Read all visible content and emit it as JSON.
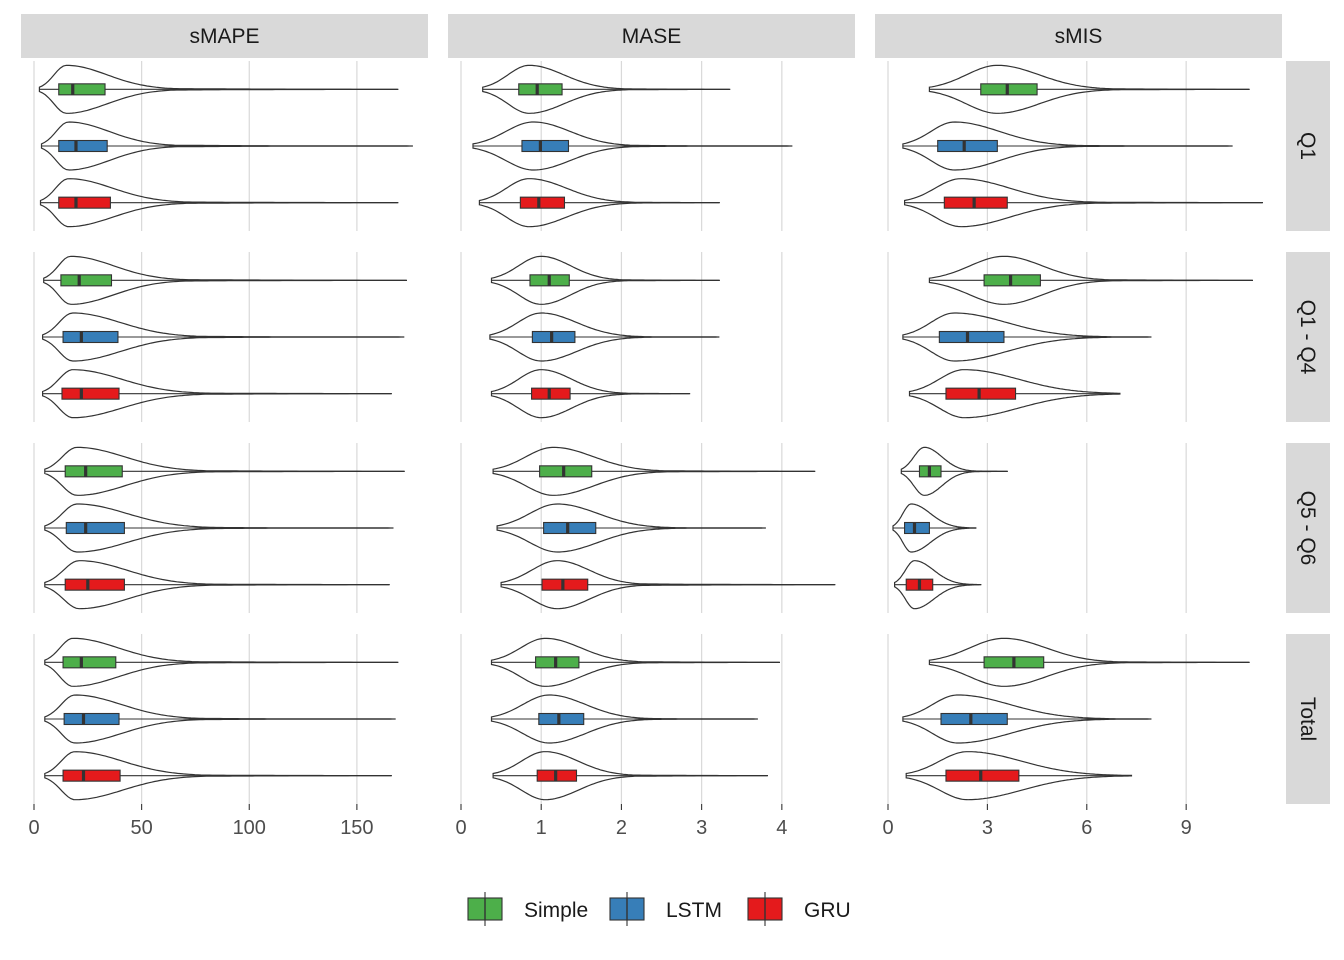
{
  "chart_data": {
    "type": "violin",
    "series": [
      {
        "name": "Simple",
        "color": "#4DAF4A"
      },
      {
        "name": "LSTM",
        "color": "#377EB8"
      },
      {
        "name": "GRU",
        "color": "#E41A1C"
      }
    ],
    "columns": [
      {
        "label": "sMAPE",
        "xlim": [
          0,
          177
        ],
        "ticks": [
          0,
          50,
          100,
          150
        ],
        "tick_labels": [
          "0",
          "50",
          "100",
          "150"
        ]
      },
      {
        "label": "MASE",
        "xlim": [
          0,
          4.75
        ],
        "ticks": [
          0,
          1,
          2,
          3,
          4
        ],
        "tick_labels": [
          "0",
          "1",
          "2",
          "3",
          "4"
        ]
      },
      {
        "label": "sMIS",
        "xlim": [
          0,
          11.5
        ],
        "ticks": [
          0,
          3,
          6,
          9
        ],
        "tick_labels": [
          "0",
          "3",
          "6",
          "9"
        ]
      }
    ],
    "rows": [
      "Q1",
      "Q1 - Q4",
      "Q5 - Q6",
      "Total"
    ],
    "panels": [
      [
        [
          {
            "series": "Simple",
            "min": 2.5,
            "max": 169,
            "q1": 11.5,
            "median": 18,
            "q3": 33,
            "mode": 15
          },
          {
            "series": "LSTM",
            "min": 3.5,
            "max": 176,
            "q1": 11.5,
            "median": 19.5,
            "q3": 34,
            "mode": 16
          },
          {
            "series": "GRU",
            "min": 3,
            "max": 169,
            "q1": 11.5,
            "median": 19.5,
            "q3": 35.5,
            "mode": 16
          }
        ],
        [
          {
            "series": "Simple",
            "min": 4.5,
            "max": 173,
            "q1": 12.5,
            "median": 21,
            "q3": 36,
            "mode": 17
          },
          {
            "series": "LSTM",
            "min": 4,
            "max": 172,
            "q1": 13.5,
            "median": 22,
            "q3": 39,
            "mode": 18
          },
          {
            "series": "GRU",
            "min": 4,
            "max": 166,
            "q1": 13,
            "median": 22,
            "q3": 39.5,
            "mode": 18
          }
        ],
        [
          {
            "series": "Simple",
            "min": 5,
            "max": 172,
            "q1": 14.5,
            "median": 24,
            "q3": 41,
            "mode": 20
          },
          {
            "series": "LSTM",
            "min": 5,
            "max": 167,
            "q1": 15,
            "median": 24,
            "q3": 42,
            "mode": 20
          },
          {
            "series": "GRU",
            "min": 5,
            "max": 165,
            "q1": 14.5,
            "median": 25,
            "q3": 42,
            "mode": 21
          }
        ],
        [
          {
            "series": "Simple",
            "min": 5,
            "max": 169,
            "q1": 13.5,
            "median": 22,
            "q3": 38,
            "mode": 18
          },
          {
            "series": "LSTM",
            "min": 5,
            "max": 168,
            "q1": 14,
            "median": 23,
            "q3": 39.5,
            "mode": 19
          },
          {
            "series": "GRU",
            "min": 5,
            "max": 166,
            "q1": 13.5,
            "median": 23,
            "q3": 40,
            "mode": 19
          }
        ]
      ],
      [
        [
          {
            "series": "Simple",
            "min": 0.27,
            "max": 3.35,
            "q1": 0.72,
            "median": 0.95,
            "q3": 1.26,
            "mode": 0.85
          },
          {
            "series": "LSTM",
            "min": 0.15,
            "max": 4.13,
            "q1": 0.76,
            "median": 0.99,
            "q3": 1.34,
            "mode": 0.9
          },
          {
            "series": "GRU",
            "min": 0.23,
            "max": 3.22,
            "q1": 0.74,
            "median": 0.97,
            "q3": 1.29,
            "mode": 0.85
          }
        ],
        [
          {
            "series": "Simple",
            "min": 0.38,
            "max": 3.22,
            "q1": 0.86,
            "median": 1.1,
            "q3": 1.35,
            "mode": 1.0
          },
          {
            "series": "LSTM",
            "min": 0.36,
            "max": 3.22,
            "q1": 0.89,
            "median": 1.13,
            "q3": 1.42,
            "mode": 1.0
          },
          {
            "series": "GRU",
            "min": 0.38,
            "max": 2.85,
            "q1": 0.88,
            "median": 1.1,
            "q3": 1.36,
            "mode": 1.0
          }
        ],
        [
          {
            "series": "Simple",
            "min": 0.4,
            "max": 4.41,
            "q1": 0.98,
            "median": 1.28,
            "q3": 1.63,
            "mode": 1.15
          },
          {
            "series": "LSTM",
            "min": 0.45,
            "max": 3.8,
            "q1": 1.03,
            "median": 1.33,
            "q3": 1.68,
            "mode": 1.2
          },
          {
            "series": "GRU",
            "min": 0.5,
            "max": 4.66,
            "q1": 1.01,
            "median": 1.27,
            "q3": 1.58,
            "mode": 1.2
          }
        ],
        [
          {
            "series": "Simple",
            "min": 0.38,
            "max": 3.97,
            "q1": 0.93,
            "median": 1.18,
            "q3": 1.47,
            "mode": 1.05
          },
          {
            "series": "LSTM",
            "min": 0.38,
            "max": 3.7,
            "q1": 0.97,
            "median": 1.22,
            "q3": 1.53,
            "mode": 1.1
          },
          {
            "series": "GRU",
            "min": 0.4,
            "max": 3.82,
            "q1": 0.95,
            "median": 1.18,
            "q3": 1.44,
            "mode": 1.05
          }
        ]
      ],
      [
        [
          {
            "series": "Simple",
            "min": 1.25,
            "max": 10.9,
            "q1": 2.8,
            "median": 3.6,
            "q3": 4.5,
            "mode": 3.3
          },
          {
            "series": "LSTM",
            "min": 0.45,
            "max": 10.4,
            "q1": 1.5,
            "median": 2.3,
            "q3": 3.3,
            "mode": 2.0
          },
          {
            "series": "GRU",
            "min": 0.5,
            "max": 11.3,
            "q1": 1.7,
            "median": 2.6,
            "q3": 3.6,
            "mode": 2.2
          }
        ],
        [
          {
            "series": "Simple",
            "min": 1.25,
            "max": 11.0,
            "q1": 2.9,
            "median": 3.7,
            "q3": 4.6,
            "mode": 3.5
          },
          {
            "series": "LSTM",
            "min": 0.45,
            "max": 7.95,
            "q1": 1.55,
            "median": 2.4,
            "q3": 3.5,
            "mode": 2.0
          },
          {
            "series": "GRU",
            "min": 0.65,
            "max": 7.0,
            "q1": 1.75,
            "median": 2.75,
            "q3": 3.85,
            "mode": 2.3
          }
        ],
        [
          {
            "series": "Simple",
            "min": 0.4,
            "max": 3.6,
            "q1": 0.95,
            "median": 1.25,
            "q3": 1.6,
            "mode": 1.1
          },
          {
            "series": "LSTM",
            "min": 0.15,
            "max": 2.65,
            "q1": 0.5,
            "median": 0.8,
            "q3": 1.25,
            "mode": 0.7
          },
          {
            "series": "GRU",
            "min": 0.2,
            "max": 2.8,
            "q1": 0.55,
            "median": 0.95,
            "q3": 1.35,
            "mode": 0.8
          }
        ],
        [
          {
            "series": "Simple",
            "min": 1.25,
            "max": 10.9,
            "q1": 2.9,
            "median": 3.8,
            "q3": 4.7,
            "mode": 3.5
          },
          {
            "series": "LSTM",
            "min": 0.45,
            "max": 7.95,
            "q1": 1.6,
            "median": 2.5,
            "q3": 3.6,
            "mode": 2.1
          },
          {
            "series": "GRU",
            "min": 0.55,
            "max": 7.35,
            "q1": 1.75,
            "median": 2.8,
            "q3": 3.95,
            "mode": 2.4
          }
        ]
      ]
    ]
  }
}
